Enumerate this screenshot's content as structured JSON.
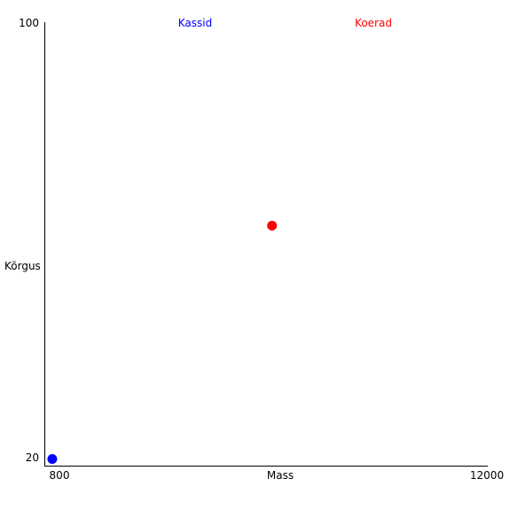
{
  "chart_data": {
    "type": "scatter",
    "xlabel": "Mass",
    "ylabel": "Kõrgus",
    "xlim": [
      800,
      12000
    ],
    "ylim": [
      20,
      100
    ],
    "x_ticks": [
      "800",
      "12000"
    ],
    "y_ticks": [
      "100",
      "20"
    ],
    "grid": false,
    "legend_placement": "top",
    "series": [
      {
        "name": "Kassid",
        "color": "#0000ff",
        "points": [
          {
            "x": 1000,
            "y": 21.2
          }
        ]
      },
      {
        "name": "Koerad",
        "color": "#ff0000",
        "points": [
          {
            "x": 6550,
            "y": 63.3
          }
        ]
      }
    ]
  }
}
